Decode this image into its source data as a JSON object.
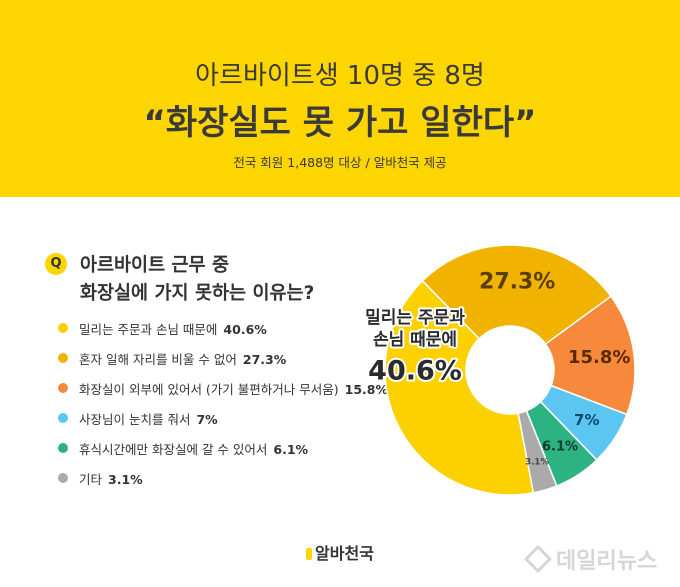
{
  "header": {
    "subtitle": "아르바이트생 10명 중 8명",
    "title": "“화장실도 못 가고 일한다”",
    "source": "전국 회원 1,488명 대상 / 알바천국 제공"
  },
  "question": {
    "badge": "Q",
    "line1": "아르바이트 근무 중",
    "line2": "화장실에 가지 못하는 이유는?"
  },
  "chart_data": {
    "type": "pie",
    "style": "donut",
    "categories": [
      "밀리는 주문과 손님 때문에",
      "혼자 일해 자리를 비울 수 없어",
      "화장실이 외부에 있어서 (가기 불편하거나 무서움)",
      "사장님이 눈치를 줘서",
      "휴식시간에만 화장실에 갈 수 있어서",
      "기타"
    ],
    "values": [
      40.6,
      27.3,
      15.8,
      7,
      6.1,
      3.1
    ],
    "value_labels": [
      "40.6%",
      "27.3%",
      "15.8%",
      "7%",
      "6.1%",
      "3.1%"
    ],
    "colors": [
      "#fdd000",
      "#f2b300",
      "#f6893b",
      "#5bc6f2",
      "#2cb283",
      "#aaaaaa"
    ],
    "highlight_label": {
      "line1": "밀리는 주문과",
      "line2": "손님 때문에",
      "value": "40.6%"
    }
  },
  "footer": {
    "logo": "알바천국",
    "watermark": "데일리뉴스"
  }
}
